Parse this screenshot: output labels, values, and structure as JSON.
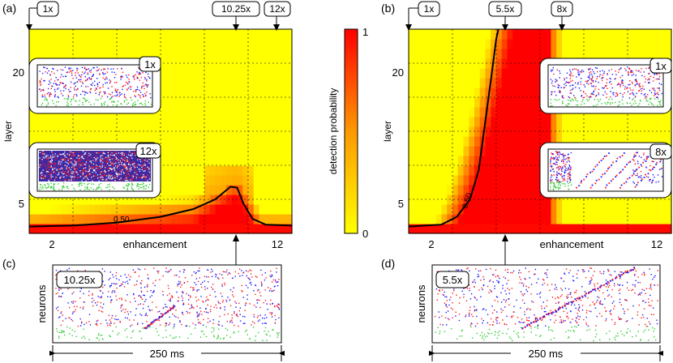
{
  "colors": {
    "low": "#ffff00",
    "high": "#ff0000",
    "mid": "#ff8000",
    "contour": "#000000",
    "spike_blue": "#1a1aff",
    "spike_red": "#ff1a1a",
    "spike_green": "#33cc33"
  },
  "colorbar": {
    "label": "detection probability",
    "ticks": [
      "0",
      "1"
    ]
  },
  "chart_data": [
    {
      "panel": "(a)",
      "type": "heatmap",
      "xlabel": "enhancement",
      "ylabel": "layer",
      "x_ticks": [
        "2",
        "12"
      ],
      "y_ticks": [
        "5",
        "20"
      ],
      "xlim": [
        1,
        13
      ],
      "ylim": [
        2.5,
        23.5
      ],
      "grid": true,
      "contour_label": "0.50",
      "markers": [
        "1x",
        "10.25x",
        "12x"
      ],
      "marker_values": [
        1,
        10.25,
        12
      ],
      "insets": [
        "1x",
        "12x"
      ],
      "contour": [
        [
          1,
          3.2
        ],
        [
          3,
          3.3
        ],
        [
          5,
          3.6
        ],
        [
          7,
          4.2
        ],
        [
          8.5,
          5.0
        ],
        [
          9.5,
          6.0
        ],
        [
          10.2,
          7.3
        ],
        [
          10.5,
          7.2
        ],
        [
          10.8,
          5.5
        ],
        [
          11.2,
          4.0
        ],
        [
          11.8,
          3.4
        ],
        [
          13,
          3.3
        ]
      ]
    },
    {
      "panel": "(b)",
      "type": "heatmap",
      "xlabel": "enhancement",
      "ylabel": "layer",
      "x_ticks": [
        "2",
        "12"
      ],
      "y_ticks": [
        "5",
        "20"
      ],
      "xlim": [
        1,
        13
      ],
      "ylim": [
        2.5,
        23.5
      ],
      "grid": true,
      "contour_label": "0.50",
      "markers": [
        "1x",
        "5.5x",
        "8x"
      ],
      "marker_values": [
        1,
        5.5,
        8
      ],
      "insets": [
        "1x",
        "8x"
      ],
      "contour": [
        [
          1,
          3.2
        ],
        [
          2.5,
          3.4
        ],
        [
          3.2,
          4.2
        ],
        [
          3.8,
          6.0
        ],
        [
          4.2,
          9.0
        ],
        [
          4.5,
          14.0
        ],
        [
          4.8,
          19.0
        ],
        [
          5.0,
          22.5
        ],
        [
          5.1,
          23.5
        ]
      ]
    },
    {
      "panel": "(c)",
      "type": "scatter",
      "ylabel": "neurons",
      "tag": "10.25x",
      "scale_label": "250 ms"
    },
    {
      "panel": "(d)",
      "type": "scatter",
      "ylabel": "neurons",
      "tag": "5.5x",
      "scale_label": "250 ms"
    }
  ]
}
